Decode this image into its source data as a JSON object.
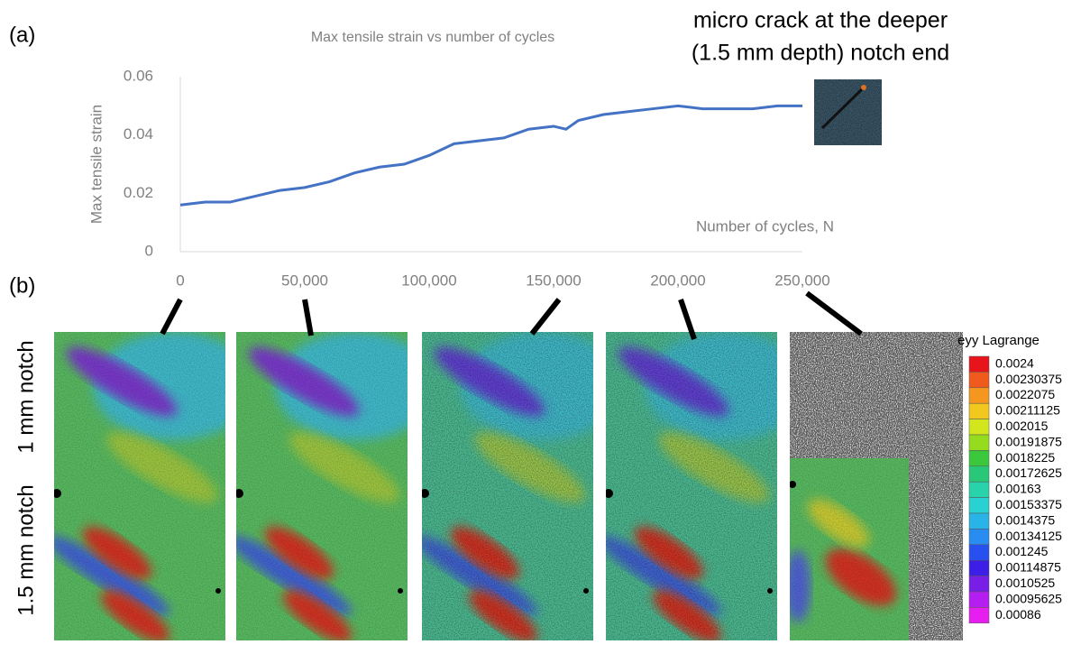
{
  "chart_data": {
    "type": "line",
    "title": "Max tensile strain vs number of cycles",
    "y_label": "Max tensile strain",
    "x_label": "Number of cycles, N",
    "annotation": [
      "micro crack at the deeper",
      "(1.5 mm depth) notch end"
    ],
    "x": [
      0,
      10000,
      20000,
      30000,
      40000,
      50000,
      60000,
      70000,
      80000,
      90000,
      100000,
      110000,
      120000,
      130000,
      140000,
      150000,
      155000,
      160000,
      170000,
      180000,
      190000,
      200000,
      210000,
      220000,
      230000,
      240000,
      250000
    ],
    "series": [
      {
        "name": "Max tensile strain",
        "color": "#4472c4",
        "values": [
          0.016,
          0.017,
          0.017,
          0.019,
          0.021,
          0.022,
          0.024,
          0.027,
          0.029,
          0.03,
          0.033,
          0.037,
          0.038,
          0.039,
          0.042,
          0.043,
          0.042,
          0.045,
          0.047,
          0.048,
          0.049,
          0.05,
          0.049,
          0.049,
          0.049,
          0.05,
          0.05
        ]
      }
    ],
    "xlim": [
      0,
      250000
    ],
    "ylim": [
      0,
      0.06
    ],
    "xticks": [
      0,
      {
        "value": 50000,
        "label": "50,000"
      },
      {
        "value": 100000,
        "label": "100,000"
      },
      {
        "value": 150000,
        "label": "150,000"
      },
      {
        "value": 200000,
        "label": "200,000"
      },
      {
        "value": 250000,
        "label": "250,000"
      }
    ],
    "yticks": [
      0,
      0.02,
      0.04,
      0.06
    ]
  },
  "figure": {
    "panel_labels": [
      "(a)",
      "(b)"
    ],
    "row_labels": [
      "1 mm notch",
      "1.5 mm notch"
    ],
    "colorbar": {
      "title": "eyy Lagrange",
      "levels": [
        0.0024,
        0.00230375,
        0.0022075,
        0.00211125,
        0.002015,
        0.00191875,
        0.0018225,
        0.00172625,
        0.00163,
        0.00153375,
        0.0014375,
        0.00134125,
        0.001245,
        0.00114875,
        0.0010525,
        0.00095625,
        0.00086
      ],
      "colors": [
        "#e8141c",
        "#f05a1c",
        "#f5961e",
        "#f2c81e",
        "#d2e61e",
        "#96dc1e",
        "#3cc83c",
        "#28c878",
        "#28d2aa",
        "#28d2d2",
        "#28b4e6",
        "#288cf0",
        "#2850f0",
        "#3c1ee6",
        "#781ee6",
        "#b41ef0",
        "#e61ef0"
      ]
    }
  }
}
